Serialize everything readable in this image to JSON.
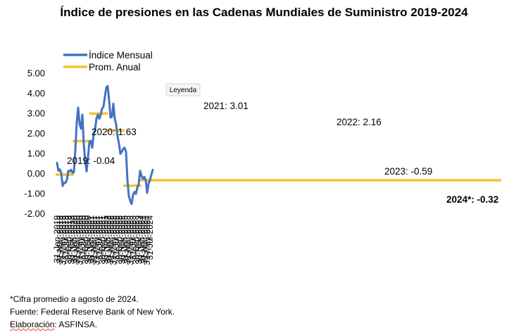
{
  "chart_data": {
    "type": "line",
    "title": "Índice de presiones en las Cadenas Mundiales de Suministro 2019-2024",
    "ylim": [
      -2.0,
      5.0
    ],
    "yticks": [
      "5.00",
      "4.00",
      "3.00",
      "2.00",
      "1.00",
      "0.00",
      "-1.00",
      "-2.00"
    ],
    "ytick_values": [
      5,
      4,
      3,
      2,
      1,
      0,
      -1,
      -2
    ],
    "xtick_labels": [
      "31-Jan-2019",
      "31-Mar-2019",
      "31-May-2019",
      "31-Jul-2019",
      "30-Sep-2019",
      "30-Nov-2019",
      "31-Jan-2020",
      "31-Mar-2020",
      "31-May-2020",
      "31-Jul-2020",
      "30-Sep-2020",
      "30-Nov-2020",
      "31-Jan-2021",
      "31-Mar-2021",
      "31-May-2021",
      "31-Jul-2021",
      "30-Sep-2021",
      "30-Nov-2021",
      "31-Jan-2022",
      "31-Mar-2022",
      "31-May-2022",
      "31-Jul-2022",
      "30-Sep-2022",
      "30-Nov-2022",
      "31-Jan-2023",
      "31-Mar-2023",
      "31-May-2023",
      "31-Jul-2023",
      "30-Sep-2023",
      "30-Nov-2023",
      "31-Jan-2024",
      "31-Mar-2024",
      "31-May-2024",
      "31-Jul-2024"
    ],
    "legend": [
      {
        "label": "Índice Mensual",
        "color": "#4472C4"
      },
      {
        "label": "Prom. Anual",
        "color": "#F4C430"
      }
    ],
    "legend_position": "top-left",
    "tooltip": "Leyenda",
    "series": [
      {
        "name": "Índice Mensual",
        "color": "#4472C4",
        "values": [
          0.55,
          0.15,
          0.22,
          0.05,
          -0.6,
          -0.45,
          -0.45,
          -0.3,
          0.15,
          0.12,
          0.2,
          0.05,
          0.08,
          1.2,
          2.55,
          3.3,
          2.5,
          2.25,
          2.95,
          1.5,
          0.65,
          0.12,
          0.8,
          1.6,
          1.65,
          1.3,
          1.95,
          2.2,
          2.75,
          2.95,
          2.75,
          2.95,
          3.25,
          3.35,
          3.85,
          4.3,
          4.38,
          3.65,
          2.8,
          2.85,
          3.5,
          2.75,
          2.45,
          1.85,
          1.5,
          1.0,
          1.1,
          1.25,
          1.3,
          1.1,
          -0.3,
          -1.1,
          -1.35,
          -1.5,
          -1.05,
          -0.9,
          -1.0,
          -0.7,
          -0.5,
          0.15,
          -0.1,
          -0.25,
          -0.15,
          -0.3,
          -0.95,
          -0.5,
          -0.3,
          -0.05,
          0.2
        ]
      },
      {
        "name": "Prom. Anual",
        "color": "#F4C430",
        "values": [
          -0.04,
          1.63,
          3.01,
          2.16,
          -0.59,
          -0.32
        ],
        "years": [
          "2019",
          "2020",
          "2021",
          "2022",
          "2023",
          "2024"
        ]
      }
    ],
    "annotations": [
      {
        "text": "2019: -0.04",
        "bold": false
      },
      {
        "text": "2020: 1.63",
        "bold": false
      },
      {
        "text": "2021: 3.01",
        "bold": false
      },
      {
        "text": "2022: 2.16",
        "bold": false
      },
      {
        "text": "2023: -0.59",
        "bold": false
      },
      {
        "text": "2024*: -0.32",
        "bold": true
      }
    ]
  },
  "footer": {
    "note": "*Cifra promedio a agosto de 2024.",
    "source": "Fuente: Federal Reserve Bank of New York.",
    "elaboration_label": "Elaboración",
    "elaboration_rest": ": ASFINSA."
  }
}
